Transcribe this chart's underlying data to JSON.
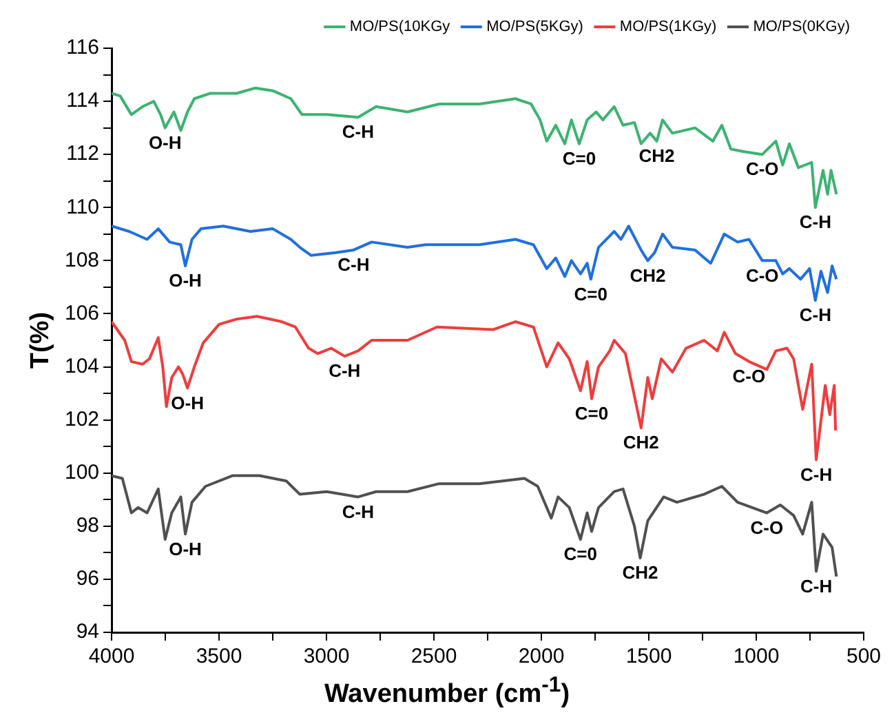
{
  "chart_data": {
    "type": "line",
    "xlabel": "Wavenumber (cm$^{-1}$)",
    "ylabel": "T(%)",
    "xlim": [
      4000,
      500
    ],
    "xticks": [
      4000,
      {
        "value": 3750,
        "label": null
      },
      3500,
      {
        "value": 3250,
        "label": null
      },
      3000,
      {
        "value": 2750,
        "label": null
      },
      2500,
      {
        "value": 2250,
        "label": null
      },
      2000,
      {
        "value": 1750,
        "label": null
      },
      1500,
      {
        "value": 1250,
        "label": null
      },
      1000,
      {
        "value": 750,
        "label": null
      },
      500
    ],
    "ylim": [
      94,
      116
    ],
    "yticks": [
      94,
      {
        "value": 95,
        "label": null
      },
      96,
      {
        "value": 97,
        "label": null
      },
      98,
      {
        "value": 99,
        "label": null
      },
      100,
      {
        "value": 101,
        "label": null
      },
      102,
      {
        "value": 103,
        "label": null
      },
      104,
      {
        "value": 105,
        "label": null
      },
      106,
      {
        "value": 107,
        "label": null
      },
      108,
      {
        "value": 109,
        "label": null
      },
      110,
      {
        "value": 111,
        "label": null
      },
      112,
      {
        "value": 113,
        "label": null
      },
      114,
      {
        "value": 115,
        "label": null
      },
      116
    ],
    "grid": false,
    "legend": "top right",
    "marker": "none",
    "series": [
      {
        "name": "MO/PS(10KGy",
        "color": "#3cb371",
        "x": [
          4000,
          3960,
          3908,
          3856,
          3804,
          3772,
          3751,
          3710,
          3678,
          3647,
          3615,
          3542,
          3417,
          3333,
          3250,
          3166,
          3114,
          2999,
          2853,
          2769,
          2623,
          2476,
          2288,
          2121,
          2048,
          2006,
          1975,
          1933,
          1891,
          1860,
          1824,
          1787,
          1745,
          1714,
          1661,
          1620,
          1567,
          1536,
          1494,
          1463,
          1436,
          1390,
          1285,
          1202,
          1160,
          1118,
          1055,
          972,
          909,
          877,
          846,
          804,
          742,
          725,
          689,
          668,
          652,
          627
        ],
        "values": [
          114.3,
          114.2,
          113.5,
          113.8,
          114.0,
          113.5,
          113.0,
          113.6,
          112.9,
          113.6,
          114.1,
          114.3,
          114.3,
          114.5,
          114.4,
          114.1,
          113.5,
          113.5,
          113.4,
          113.8,
          113.6,
          113.9,
          113.9,
          114.1,
          113.9,
          113.3,
          112.5,
          113.1,
          112.4,
          113.3,
          112.4,
          113.3,
          113.6,
          113.3,
          113.8,
          113.1,
          113.2,
          112.4,
          112.8,
          112.5,
          113.3,
          112.8,
          113.0,
          112.5,
          113.1,
          112.2,
          112.1,
          112.0,
          112.5,
          111.6,
          112.4,
          111.5,
          111.7,
          110.0,
          111.4,
          110.5,
          111.4,
          110.5
        ]
      },
      {
        "name": "MO/PS(5KGy)",
        "color": "#1f6fe0",
        "x": [
          4000,
          3918,
          3835,
          3783,
          3730,
          3678,
          3657,
          3626,
          3584,
          3480,
          3354,
          3250,
          3166,
          3124,
          3072,
          2957,
          2874,
          2790,
          2623,
          2539,
          2288,
          2121,
          2037,
          1975,
          1933,
          1891,
          1860,
          1818,
          1787,
          1770,
          1734,
          1661,
          1630,
          1594,
          1536,
          1505,
          1473,
          1436,
          1390,
          1285,
          1212,
          1149,
          1087,
          1034,
          972,
          909,
          877,
          846,
          794,
          752,
          725,
          699,
          668,
          647,
          627
        ],
        "values": [
          109.3,
          109.1,
          108.8,
          109.2,
          108.7,
          108.6,
          107.8,
          108.8,
          109.2,
          109.3,
          109.1,
          109.2,
          108.8,
          108.5,
          108.2,
          108.3,
          108.4,
          108.7,
          108.5,
          108.6,
          108.6,
          108.8,
          108.6,
          107.7,
          108.1,
          107.4,
          108.0,
          107.5,
          107.9,
          107.3,
          108.5,
          109.1,
          108.8,
          109.3,
          108.4,
          108.0,
          108.3,
          109.0,
          108.5,
          108.4,
          107.9,
          109.0,
          108.7,
          108.8,
          108.0,
          108.0,
          107.5,
          107.7,
          107.3,
          107.7,
          106.5,
          107.6,
          106.8,
          107.8,
          107.3
        ]
      },
      {
        "name": "MO/PS(1KGy)",
        "color": "#f03c3c",
        "x": [
          4000,
          3939,
          3908,
          3856,
          3824,
          3783,
          3762,
          3745,
          3720,
          3689,
          3668,
          3647,
          3615,
          3574,
          3500,
          3417,
          3323,
          3208,
          3145,
          3083,
          3041,
          2978,
          2916,
          2853,
          2790,
          2623,
          2486,
          2226,
          2121,
          2037,
          1975,
          1922,
          1870,
          1818,
          1787,
          1766,
          1734,
          1682,
          1661,
          1609,
          1567,
          1536,
          1505,
          1484,
          1442,
          1390,
          1327,
          1243,
          1181,
          1149,
          1097,
          1034,
          951,
          909,
          857,
          826,
          784,
          742,
          721,
          679,
          658,
          637,
          631
        ],
        "values": [
          105.7,
          105.0,
          104.2,
          104.1,
          104.3,
          105.1,
          104.0,
          102.5,
          103.6,
          104.0,
          103.7,
          103.2,
          104.0,
          104.9,
          105.6,
          105.8,
          105.9,
          105.7,
          105.5,
          104.7,
          104.5,
          104.7,
          104.4,
          104.6,
          105.0,
          105.0,
          105.5,
          105.4,
          105.7,
          105.5,
          104.0,
          104.9,
          104.3,
          103.1,
          104.2,
          102.8,
          104.0,
          104.6,
          105.0,
          104.5,
          102.9,
          101.7,
          103.6,
          102.8,
          104.3,
          103.8,
          104.7,
          105.0,
          104.6,
          105.3,
          104.5,
          104.2,
          103.9,
          104.6,
          104.7,
          104.3,
          102.4,
          104.1,
          100.5,
          103.3,
          102.2,
          103.3,
          101.6
        ]
      },
      {
        "name": "MO/PS(0KGy)",
        "color": "#505050",
        "x": [
          4000,
          3950,
          3908,
          3877,
          3835,
          3783,
          3751,
          3720,
          3678,
          3657,
          3626,
          3563,
          3438,
          3312,
          3187,
          3124,
          2999,
          2853,
          2769,
          2623,
          2476,
          2288,
          2079,
          2017,
          1954,
          1922,
          1870,
          1818,
          1787,
          1766,
          1734,
          1661,
          1620,
          1567,
          1540,
          1505,
          1431,
          1369,
          1243,
          1160,
          1087,
          951,
          888,
          826,
          784,
          742,
          721,
          689,
          647,
          627
        ],
        "values": [
          99.9,
          99.8,
          98.5,
          98.7,
          98.5,
          99.4,
          97.5,
          98.5,
          99.1,
          97.7,
          98.9,
          99.5,
          99.9,
          99.9,
          99.7,
          99.2,
          99.3,
          99.1,
          99.3,
          99.3,
          99.6,
          99.6,
          99.8,
          99.5,
          98.3,
          99.1,
          98.7,
          97.5,
          98.5,
          97.8,
          98.7,
          99.3,
          99.4,
          98.0,
          96.8,
          98.2,
          99.1,
          98.9,
          99.2,
          99.5,
          98.9,
          98.5,
          98.8,
          98.4,
          97.7,
          98.9,
          96.3,
          97.7,
          97.2,
          96.1
        ]
      }
    ],
    "annotations": [
      {
        "text": "O-H",
        "x": 3751,
        "y": 113.0
      },
      {
        "text": "C-H",
        "x": 2853,
        "y": 113.4
      },
      {
        "text": "C=0",
        "x": 1824,
        "y": 112.4
      },
      {
        "text": "CH2",
        "x": 1463,
        "y": 112.5
      },
      {
        "text": "C-O",
        "x": 972,
        "y": 112.0
      },
      {
        "text": "C-H",
        "x": 725,
        "y": 110.0
      },
      {
        "text": "O-H",
        "x": 3657,
        "y": 107.8
      },
      {
        "text": "C-H",
        "x": 2874,
        "y": 108.4
      },
      {
        "text": "C=0",
        "x": 1770,
        "y": 107.3
      },
      {
        "text": "CH2",
        "x": 1505,
        "y": 108.0
      },
      {
        "text": "C-O",
        "x": 972,
        "y": 108.0
      },
      {
        "text": "C-H",
        "x": 725,
        "y": 106.5
      },
      {
        "text": "O-H",
        "x": 3647,
        "y": 103.2
      },
      {
        "text": "C-H",
        "x": 2916,
        "y": 104.4
      },
      {
        "text": "C=0",
        "x": 1766,
        "y": 102.8
      },
      {
        "text": "CH2",
        "x": 1536,
        "y": 101.7
      },
      {
        "text": "C-O",
        "x": 1034,
        "y": 104.2
      },
      {
        "text": "C-H",
        "x": 721,
        "y": 100.5
      },
      {
        "text": "O-H",
        "x": 3657,
        "y": 97.7
      },
      {
        "text": "C-H",
        "x": 2853,
        "y": 99.1
      },
      {
        "text": "C=0",
        "x": 1818,
        "y": 97.5
      },
      {
        "text": "CH2",
        "x": 1540,
        "y": 96.8
      },
      {
        "text": "C-O",
        "x": 951,
        "y": 98.5
      },
      {
        "text": "C-H",
        "x": 721,
        "y": 96.3
      }
    ]
  }
}
